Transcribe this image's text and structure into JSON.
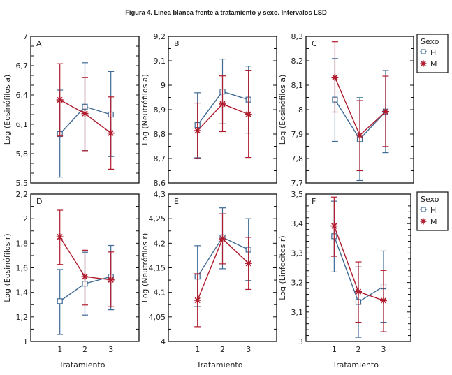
{
  "figure_title": "Figura 4. Línea blanca frente a tratamiento y sexo. Intervalos LSD",
  "colors": {
    "H": "#3f6a94",
    "M": "#b01c2e",
    "frame": "#111111"
  },
  "legend": {
    "title": "Sexo",
    "entries": [
      {
        "key": "H",
        "label": "H",
        "marker": "square"
      },
      {
        "key": "M",
        "label": "M",
        "marker": "asterisk"
      }
    ]
  },
  "chart_data": [
    {
      "type": "line",
      "panel": "A",
      "title": "",
      "xlabel": "",
      "ylabel": "Log (Eosinófilos a)",
      "categories": [
        "1",
        "2",
        "3"
      ],
      "ylim": [
        5.5,
        7.0
      ],
      "yticks": [
        5.5,
        5.8,
        6.1,
        6.4,
        6.7,
        7.0
      ],
      "ytick_labels": [
        "5,5",
        "5,8",
        "6,1",
        "6,4",
        "6,7",
        "7"
      ],
      "minor_step": 0.1,
      "show_xticks": false,
      "legend": false,
      "series": [
        {
          "name": "H",
          "values": [
            6.0,
            6.28,
            6.2
          ],
          "lower": [
            5.56,
            5.83,
            5.77
          ],
          "upper": [
            6.45,
            6.73,
            6.64
          ]
        },
        {
          "name": "M",
          "values": [
            6.35,
            6.21,
            6.01
          ],
          "lower": [
            5.98,
            5.83,
            5.64
          ],
          "upper": [
            6.72,
            6.58,
            6.38
          ]
        }
      ]
    },
    {
      "type": "line",
      "panel": "B",
      "title": "",
      "xlabel": "",
      "ylabel": "Log (Neutrófilos a)",
      "categories": [
        "1",
        "2",
        "3"
      ],
      "ylim": [
        8.6,
        9.2
      ],
      "yticks": [
        8.6,
        8.7,
        8.8,
        8.9,
        9.0,
        9.1,
        9.2
      ],
      "ytick_labels": [
        "8,6",
        "8,7",
        "8,8",
        "8,9",
        "9",
        "9,1",
        "9,2"
      ],
      "minor_step": 0.05,
      "show_xticks": false,
      "legend": false,
      "series": [
        {
          "name": "H",
          "values": [
            8.837,
            8.974,
            8.941
          ],
          "lower": [
            8.703,
            8.842,
            8.804
          ],
          "upper": [
            8.969,
            9.107,
            9.078
          ]
        },
        {
          "name": "M",
          "values": [
            8.814,
            8.923,
            8.881
          ],
          "lower": [
            8.7,
            8.81,
            8.704
          ],
          "upper": [
            8.927,
            9.038,
            9.061
          ]
        }
      ]
    },
    {
      "type": "line",
      "panel": "C",
      "title": "",
      "xlabel": "",
      "ylabel": "Log (Eosinófilos a)",
      "categories": [
        "1",
        "2",
        "3"
      ],
      "ylim": [
        7.7,
        8.3
      ],
      "yticks": [
        7.7,
        7.8,
        7.9,
        8.0,
        8.1,
        8.2,
        8.3
      ],
      "ytick_labels": [
        "7,7",
        "7,8",
        "7,9",
        "8",
        "8,1",
        "8,2",
        "8,3"
      ],
      "minor_step": 0.05,
      "show_xticks": false,
      "legend": true,
      "series": [
        {
          "name": "H",
          "values": [
            8.041,
            7.879,
            7.992
          ],
          "lower": [
            7.87,
            7.71,
            7.824
          ],
          "upper": [
            8.209,
            8.049,
            8.16
          ]
        },
        {
          "name": "M",
          "values": [
            8.132,
            7.895,
            7.992
          ],
          "lower": [
            7.99,
            7.75,
            7.849
          ],
          "upper": [
            8.278,
            8.037,
            8.137
          ]
        }
      ]
    },
    {
      "type": "line",
      "panel": "D",
      "title": "",
      "xlabel": "Tratamiento",
      "ylabel": "Log (Eosinófilos r)",
      "categories": [
        "1",
        "2",
        "3"
      ],
      "ylim": [
        1.0,
        2.2
      ],
      "yticks": [
        1.0,
        1.2,
        1.4,
        1.6,
        1.8,
        2.0,
        2.2
      ],
      "ytick_labels": [
        "1",
        "1,2",
        "1,4",
        "1,6",
        "1,8",
        "2",
        "2,2"
      ],
      "minor_step": 0.1,
      "show_xticks": true,
      "legend": false,
      "series": [
        {
          "name": "H",
          "values": [
            1.328,
            1.471,
            1.528
          ],
          "lower": [
            1.057,
            1.215,
            1.258
          ],
          "upper": [
            1.586,
            1.727,
            1.782
          ]
        },
        {
          "name": "M",
          "values": [
            1.852,
            1.528,
            1.502
          ],
          "lower": [
            1.627,
            1.297,
            1.283
          ],
          "upper": [
            2.069,
            1.743,
            1.729
          ]
        }
      ]
    },
    {
      "type": "line",
      "panel": "E",
      "title": "",
      "xlabel": "Tratamiento",
      "ylabel": "Log (Neutrófilos r)",
      "categories": [
        "1",
        "2",
        "3"
      ],
      "ylim": [
        4.0,
        4.3
      ],
      "yticks": [
        4.0,
        4.05,
        4.1,
        4.15,
        4.2,
        4.25,
        4.3
      ],
      "ytick_labels": [
        "4",
        "4,05",
        "4,1",
        "4,15",
        "4,2",
        "4,25",
        "4,3"
      ],
      "minor_step": 0.025,
      "show_xticks": true,
      "legend": false,
      "series": [
        {
          "name": "H",
          "values": [
            4.132,
            4.212,
            4.187
          ],
          "lower": [
            4.071,
            4.148,
            4.124
          ],
          "upper": [
            4.195,
            4.272,
            4.25
          ]
        },
        {
          "name": "M",
          "values": [
            4.084,
            4.209,
            4.159
          ],
          "lower": [
            4.03,
            4.158,
            4.106
          ],
          "upper": [
            4.138,
            4.26,
            4.212
          ]
        }
      ]
    },
    {
      "type": "line",
      "panel": "F",
      "title": "",
      "xlabel": "Tratamiento",
      "ylabel": "Log (Linfocitos r)",
      "categories": [
        "1",
        "2",
        "3"
      ],
      "ylim": [
        3.0,
        3.5
      ],
      "yticks": [
        3.0,
        3.1,
        3.2,
        3.3,
        3.4,
        3.5
      ],
      "ytick_labels": [
        "3",
        "3,1",
        "3,2",
        "3,3",
        "3,4",
        "3,5"
      ],
      "minor_step": 0.02,
      "show_xticks": true,
      "legend": true,
      "series": [
        {
          "name": "H",
          "values": [
            3.357,
            3.134,
            3.187
          ],
          "lower": [
            3.236,
            3.014,
            3.065
          ],
          "upper": [
            3.476,
            3.253,
            3.307
          ]
        },
        {
          "name": "M",
          "values": [
            3.392,
            3.169,
            3.139
          ],
          "lower": [
            3.289,
            3.065,
            3.033
          ],
          "upper": [
            3.49,
            3.27,
            3.241
          ]
        }
      ]
    }
  ]
}
